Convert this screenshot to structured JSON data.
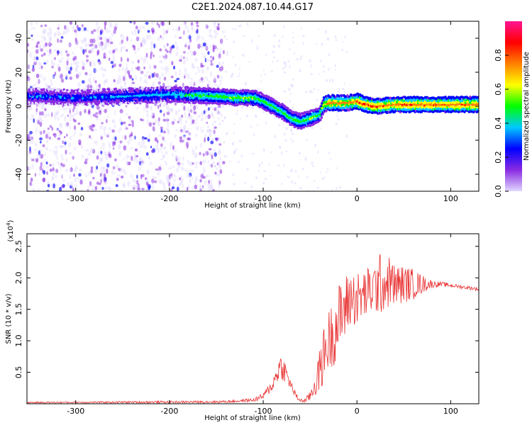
{
  "title": "C2E1.2024.087.10.44.G17",
  "chart_data": [
    {
      "type": "heatmap",
      "xlabel": "Height of straight line (km)",
      "ylabel": "Frequency (Hz)",
      "xlim": [
        -352,
        130
      ],
      "ylim": [
        -50,
        50
      ],
      "x_ticks": [
        -300,
        -200,
        -100,
        0,
        100
      ],
      "y_ticks": [
        -40,
        -20,
        0,
        20,
        40
      ],
      "colorbar": {
        "label": "Normalized spectral amplitude",
        "range": [
          0.0,
          1.0
        ],
        "ticks": [
          "0.0",
          "0.2",
          "0.4",
          "0.6",
          "0.8"
        ],
        "colormap": [
          "#e0d8ff",
          "#8a2be2",
          "#0000ff",
          "#00c8ff",
          "#00ff00",
          "#ffff00",
          "#ff8000",
          "#ff0000",
          "#ff1493"
        ]
      },
      "ridge": {
        "x": [
          -340,
          -300,
          -200,
          -150,
          -130,
          -120,
          -110,
          -100,
          -90,
          -80,
          -70,
          -60,
          -50,
          -40,
          -35,
          -30,
          -20,
          -10,
          0,
          10,
          20,
          40,
          60,
          80,
          100,
          130
        ],
        "y": [
          6,
          5,
          7,
          6,
          5,
          5,
          5,
          3,
          0,
          -3,
          -7,
          -9,
          -7,
          -5,
          1,
          2,
          2,
          2,
          3,
          1,
          0,
          1,
          1,
          1,
          1,
          1
        ],
        "amplitude": [
          0.35,
          0.35,
          0.45,
          0.55,
          0.6,
          0.6,
          0.6,
          0.55,
          0.55,
          0.55,
          0.55,
          0.55,
          0.6,
          0.6,
          0.7,
          0.8,
          0.8,
          0.8,
          0.85,
          0.9,
          0.85,
          0.85,
          0.85,
          0.85,
          0.85,
          0.85
        ]
      }
    },
    {
      "type": "line",
      "xlabel": "Height of straight line (km)",
      "ylabel": "SNR (10 * v/v)",
      "y_multiplier": "(x10",
      "y_multiplier_exp": "4",
      "y_multiplier_close": ")",
      "xlim": [
        -352,
        130
      ],
      "ylim": [
        0,
        2.7
      ],
      "x_ticks": [
        -300,
        -200,
        -100,
        0,
        100
      ],
      "y_ticks": [
        0.5,
        1.0,
        1.5,
        2.0,
        2.5
      ],
      "color": "#e83030",
      "envelope": {
        "x": [
          -352,
          -150,
          -130,
          -110,
          -100,
          -90,
          -82,
          -78,
          -72,
          -65,
          -60,
          -55,
          -50,
          -45,
          -40,
          -35,
          -30,
          -25,
          -20,
          -15,
          -10,
          -5,
          0,
          10,
          20,
          25,
          30,
          35,
          40,
          50,
          60,
          70,
          80,
          90,
          100,
          110,
          120,
          130
        ],
        "y": [
          0.02,
          0.03,
          0.04,
          0.06,
          0.12,
          0.3,
          0.6,
          0.55,
          0.35,
          0.12,
          0.05,
          0.05,
          0.12,
          0.3,
          0.5,
          0.8,
          1.0,
          1.15,
          1.3,
          1.45,
          1.6,
          1.7,
          1.65,
          1.75,
          1.85,
          1.9,
          1.9,
          1.95,
          1.88,
          1.9,
          1.9,
          1.9,
          1.9,
          1.9,
          1.88,
          1.86,
          1.84,
          1.82
        ],
        "noise": [
          0.01,
          0.02,
          0.02,
          0.03,
          0.05,
          0.1,
          0.2,
          0.2,
          0.1,
          0.05,
          0.03,
          0.04,
          0.08,
          0.2,
          0.35,
          0.45,
          0.5,
          0.55,
          0.6,
          0.55,
          0.5,
          0.45,
          0.45,
          0.4,
          0.45,
          0.5,
          0.45,
          0.4,
          0.35,
          0.3,
          0.25,
          0.15,
          0.06,
          0.04,
          0.03,
          0.03,
          0.03,
          0.03
        ]
      }
    }
  ]
}
